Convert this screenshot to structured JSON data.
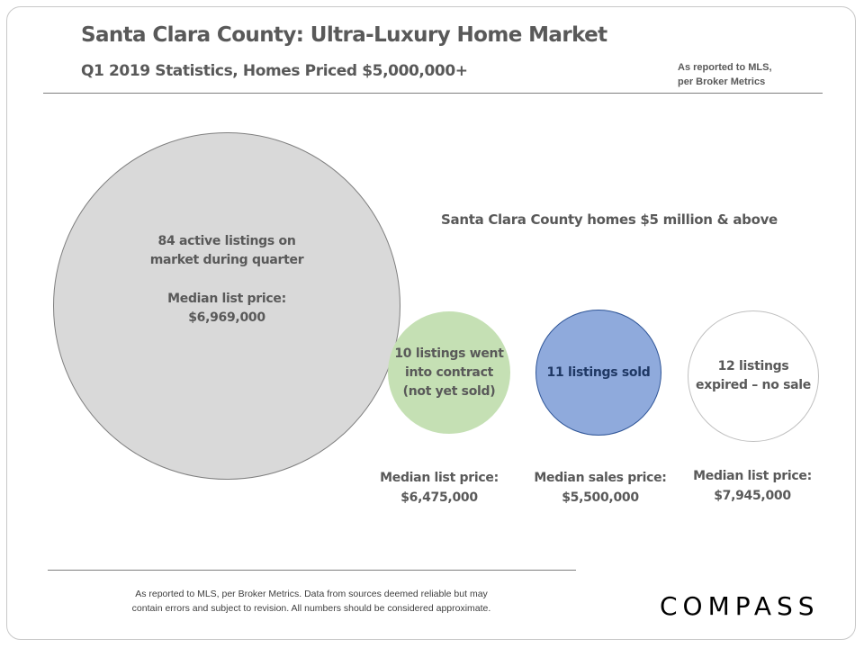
{
  "header": {
    "title": "Santa Clara County: Ultra-Luxury Home Market",
    "subtitle": "Q1 2019 Statistics,  Homes Priced $5,000,000+",
    "source_note": [
      "As reported to MLS,",
      "per Broker Metrics"
    ]
  },
  "caption": "Santa Clara County homes $5 million & above",
  "bubbles": {
    "active": {
      "count": 84,
      "lines": [
        "84 active listings on",
        "market during quarter"
      ],
      "price_label": "Median list price:",
      "price_value": "$6,969,000",
      "color": "#d9d9d9"
    },
    "contract": {
      "count": 10,
      "lines": [
        "10 listings went",
        "into contract",
        "(not yet sold)"
      ],
      "price_label": "Median list price:",
      "price_value": "$6,475,000",
      "color": "#c5e0b4"
    },
    "sold": {
      "count": 11,
      "lines": [
        "11 listings sold"
      ],
      "price_label": "Median sales price:",
      "price_value": "$5,500,000",
      "color": "#8faadc"
    },
    "expired": {
      "count": 12,
      "lines": [
        "12 listings",
        "expired – no sale"
      ],
      "price_label": "Median list price:",
      "price_value": "$7,945,000",
      "color": "#ffffff"
    }
  },
  "footer": {
    "lines": [
      "As reported to MLS, per Broker Metrics. Data from sources deemed  reliable but may",
      "contain errors and subject to revision. All numbers should be considered approximate."
    ]
  },
  "logo": "COMPASS"
}
